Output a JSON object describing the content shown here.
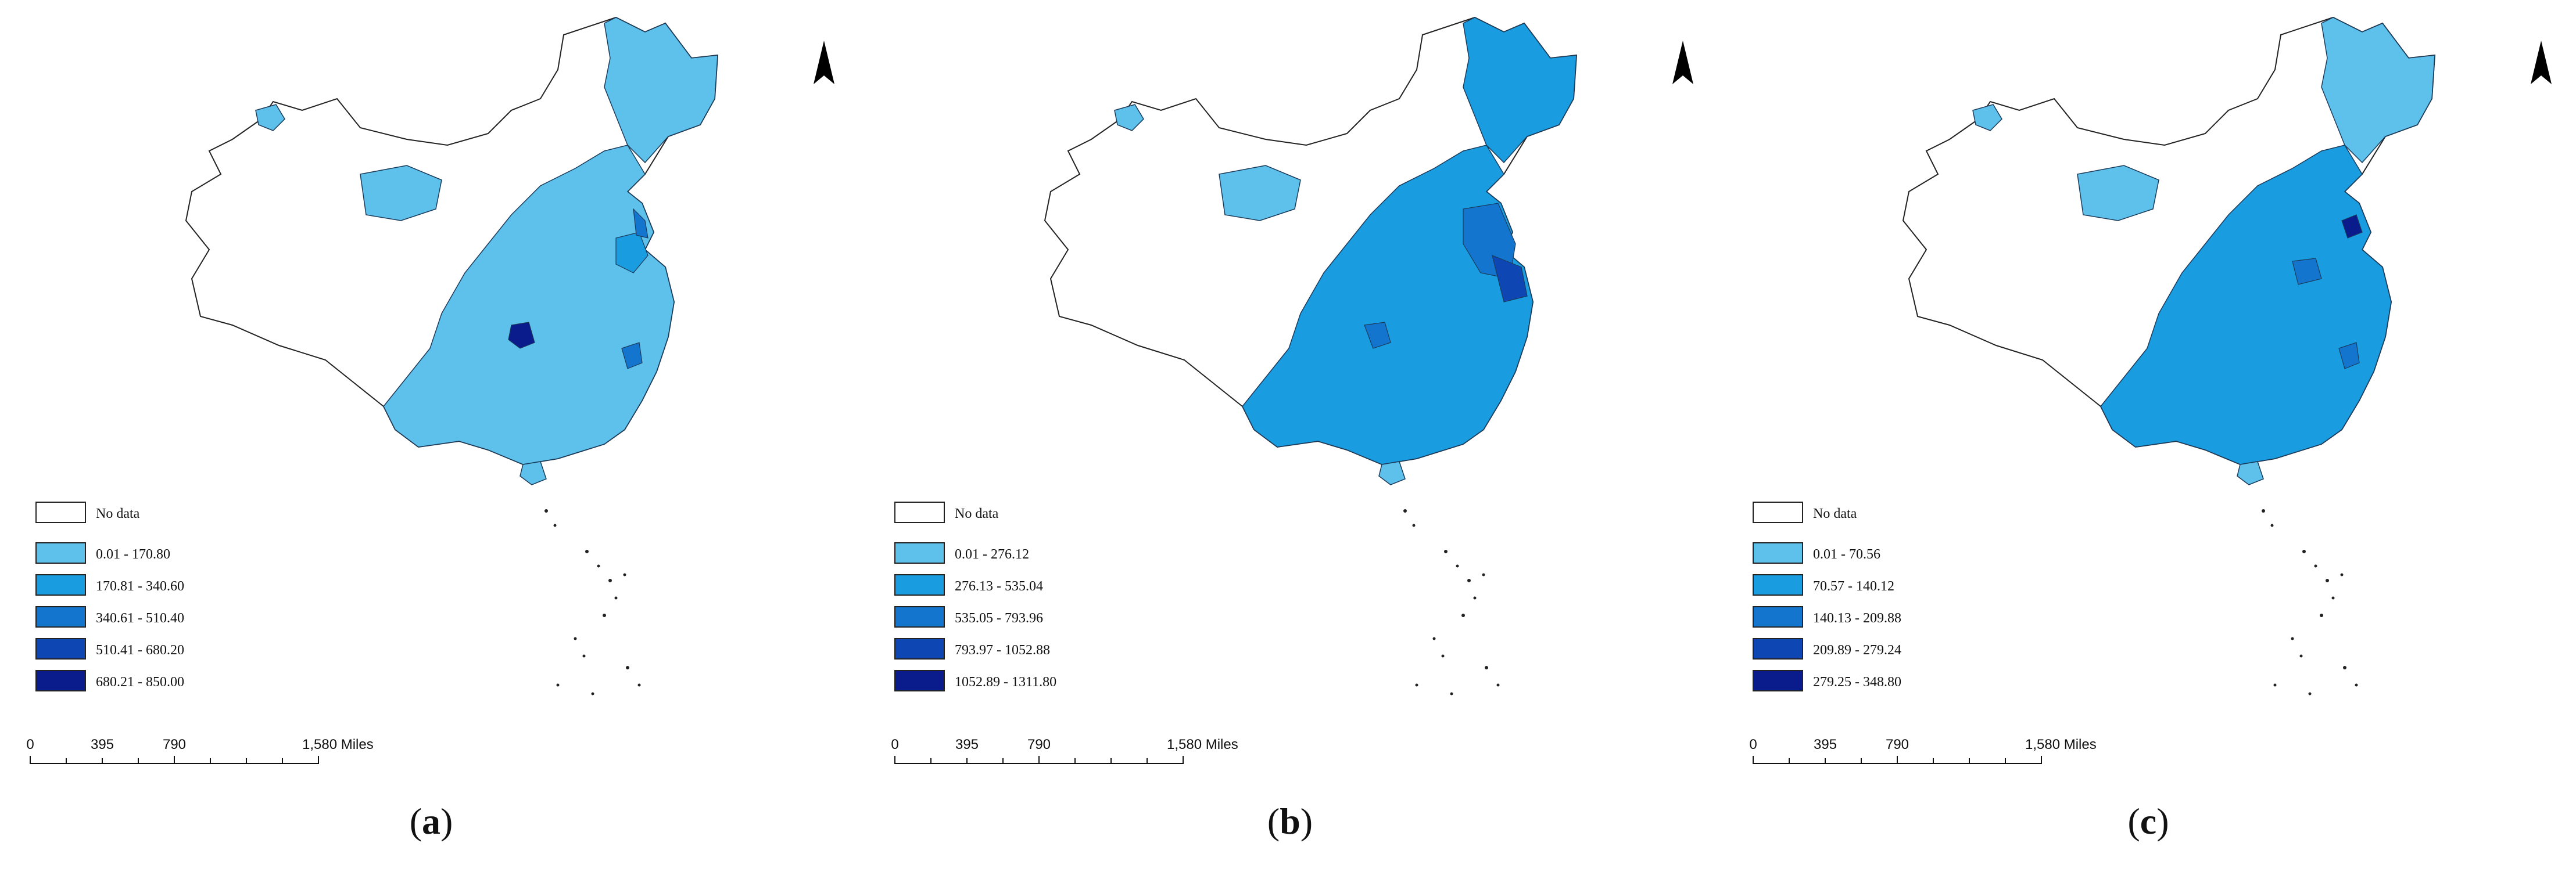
{
  "panels": [
    {
      "caption": "a",
      "legend": {
        "no_data_label": "No data",
        "classes": [
          {
            "label": "0.01 - 170.80",
            "color": "#5ec1ec"
          },
          {
            "label": "170.81 - 340.60",
            "color": "#199ce0"
          },
          {
            "label": "340.61 - 510.40",
            "color": "#1475cf"
          },
          {
            "label": "510.41 - 680.20",
            "color": "#0e47b4"
          },
          {
            "label": "680.21 - 850.00",
            "color": "#0a1b8c"
          }
        ]
      },
      "scale_bar": {
        "labels": [
          "0",
          "395",
          "790",
          "1,580 Miles"
        ]
      },
      "north_label": "N"
    },
    {
      "caption": "b",
      "legend": {
        "no_data_label": "No data",
        "classes": [
          {
            "label": "0.01 - 276.12",
            "color": "#5ec1ec"
          },
          {
            "label": "276.13 - 535.04",
            "color": "#199ce0"
          },
          {
            "label": "535.05 - 793.96",
            "color": "#1475cf"
          },
          {
            "label": "793.97 - 1052.88",
            "color": "#0e47b4"
          },
          {
            "label": "1052.89 - 1311.80",
            "color": "#0a1b8c"
          }
        ]
      },
      "scale_bar": {
        "labels": [
          "0",
          "395",
          "790",
          "1,580 Miles"
        ]
      },
      "north_label": "N"
    },
    {
      "caption": "c",
      "legend": {
        "no_data_label": "No data",
        "classes": [
          {
            "label": "0.01 - 70.56",
            "color": "#5ec1ec"
          },
          {
            "label": "70.57 - 140.12",
            "color": "#199ce0"
          },
          {
            "label": "140.13 - 209.88",
            "color": "#1475cf"
          },
          {
            "label": "209.89 - 279.24",
            "color": "#0e47b4"
          },
          {
            "label": "279.25 - 348.80",
            "color": "#0a1b8c"
          }
        ]
      },
      "scale_bar": {
        "labels": [
          "0",
          "395",
          "790",
          "1,580 Miles"
        ]
      },
      "north_label": "N"
    }
  ]
}
